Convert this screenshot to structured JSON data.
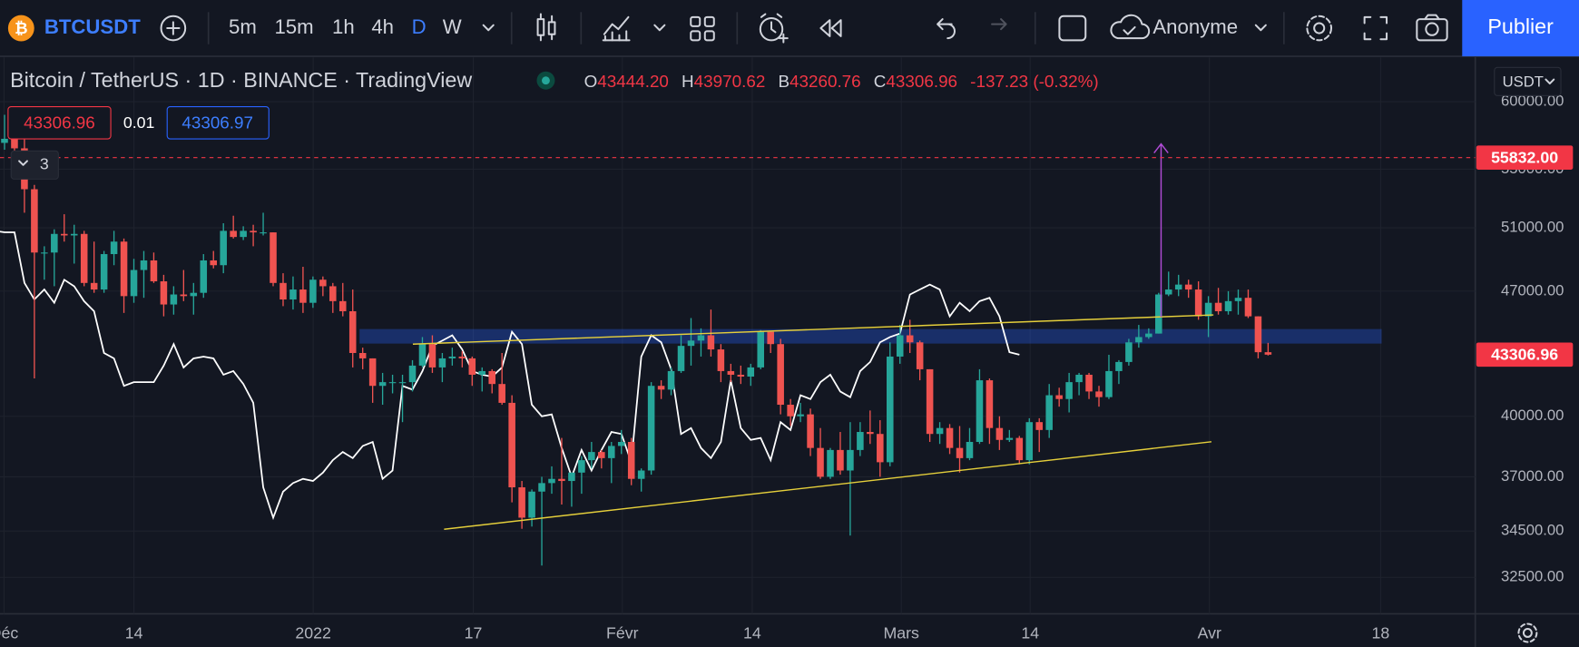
{
  "toolbar": {
    "logo": "₿",
    "symbol": "BTCUSDT",
    "intervals": [
      "5m",
      "15m",
      "1h",
      "4h",
      "D",
      "W"
    ],
    "account": "Anonyme",
    "publish": "Publier"
  },
  "legend": {
    "title": "Bitcoin / TetherUS · 1D · BINANCE · TradingView",
    "ohlc": [
      {
        "label": "O",
        "value": "43444.20"
      },
      {
        "label": "H",
        "value": "43970.62"
      },
      {
        "label": "B",
        "value": "43260.76"
      },
      {
        "label": "C",
        "value": "43306.96"
      }
    ],
    "change": "-137.23 (-0.32%)",
    "sell": "43306.96",
    "spread": "0.01",
    "buy": "43306.97",
    "indicators_count": "3"
  },
  "chart_data": {
    "type": "candlestick",
    "currency": "USDT",
    "log": true,
    "grid": true,
    "up_color": "#26a69a",
    "down_color": "#ef5350",
    "lagging_color": "#ffffff",
    "ylim": [
      31010,
      63530
    ],
    "yticks": [
      {
        "value": 60000,
        "label": "60000.00"
      },
      {
        "value": 55000,
        "label": "55000.00"
      },
      {
        "value": 51000,
        "label": "51000.00"
      },
      {
        "value": 47000,
        "label": "47000.00"
      },
      {
        "value": 40000,
        "label": "40000.00"
      },
      {
        "value": 37000,
        "label": "37000.00"
      },
      {
        "value": 34500,
        "label": "34500.00"
      },
      {
        "value": 32500,
        "label": "32500.00"
      }
    ],
    "x_labels": [
      "Déc",
      "14",
      "2022",
      "17",
      "Févr",
      "14",
      "Mars",
      "14",
      "Avr",
      "18"
    ],
    "zone": [
      43930,
      44760
    ],
    "price_tags": [
      {
        "value": 55832,
        "label": "55832.00",
        "color": "#f23645"
      },
      {
        "value": 43306.96,
        "color": "#f23645"
      }
    ],
    "open": [
      56900,
      57200,
      56500,
      53600,
      49400,
      49400,
      50600,
      50500,
      50600,
      47500,
      47100,
      49300,
      50100,
      46700,
      48300,
      48900,
      47600,
      46200,
      46800,
      46700,
      46900,
      48900,
      48600,
      50800,
      50400,
      50800,
      50700,
      50700,
      47500,
      46500,
      47100,
      46300,
      47700,
      47300,
      46400,
      45800,
      43400,
      43100,
      41600,
      41800,
      41800,
      41800,
      42700,
      43900,
      42600,
      43100,
      43200,
      43100,
      42200,
      42400,
      41700,
      40700,
      36500,
      35100,
      36300,
      36700,
      36900,
      36800,
      37200,
      37800,
      38200,
      37900,
      38500,
      38700,
      36900,
      37300,
      41600,
      41400,
      42400,
      43800,
      44100,
      44400,
      43600,
      42400,
      42200,
      42100,
      42600,
      44600,
      43900,
      40600,
      40000,
      40100,
      38400,
      37000,
      38300,
      37300,
      38300,
      39200,
      39100,
      37700,
      43200,
      44400,
      44000,
      42500,
      39100,
      39400,
      38400,
      37900,
      38700,
      41900,
      39400,
      38800,
      38900,
      37800,
      39700,
      39300,
      41100,
      40900,
      41800,
      42200,
      41300,
      41000,
      42400,
      42900,
      44000,
      44300,
      44500,
      46800,
      47100,
      47400,
      47100,
      45500,
      46300,
      45800,
      46400,
      46600,
      45500,
      43444.2
    ],
    "high": [
      59000,
      57400,
      57600,
      53900,
      49800,
      50900,
      51900,
      51200,
      50800,
      50100,
      49500,
      50800,
      50300,
      49000,
      49500,
      49400,
      48000,
      47300,
      48300,
      47500,
      49300,
      49500,
      51300,
      51800,
      51100,
      51200,
      52000,
      50700,
      48100,
      47900,
      48500,
      47900,
      47900,
      47500,
      47500,
      47100,
      43700,
      43100,
      42300,
      42200,
      42200,
      43000,
      44300,
      44400,
      43400,
      43700,
      43500,
      43200,
      42600,
      42500,
      43400,
      41100,
      36800,
      36400,
      37000,
      37500,
      38900,
      37200,
      38000,
      38700,
      38300,
      38700,
      39300,
      38900,
      37400,
      41800,
      41900,
      42600,
      44400,
      45400,
      44800,
      45900,
      43900,
      42800,
      42700,
      42800,
      44700,
      44600,
      44200,
      40900,
      40700,
      40400,
      39400,
      38400,
      39200,
      39700,
      39700,
      40300,
      39800,
      44000,
      45000,
      45300,
      44100,
      42500,
      39700,
      39600,
      39500,
      39400,
      42500,
      42000,
      40000,
      39300,
      39000,
      39900,
      39900,
      41700,
      41500,
      42300,
      42300,
      42300,
      41600,
      43300,
      43000,
      44200,
      45000,
      44800,
      46900,
      48200,
      48000,
      47700,
      47600,
      46700,
      47200,
      47000,
      47100,
      47100,
      45500,
      43970.62
    ],
    "low": [
      56400,
      55900,
      52000,
      42000,
      47700,
      47300,
      50100,
      48700,
      47300,
      46900,
      46900,
      48600,
      45700,
      46300,
      46600,
      47500,
      45500,
      45600,
      46400,
      45600,
      46600,
      48400,
      48100,
      50300,
      50200,
      49800,
      50500,
      47300,
      46100,
      45900,
      45700,
      46000,
      46700,
      45700,
      45500,
      42600,
      42500,
      40700,
      40600,
      41200,
      39700,
      41300,
      42600,
      42300,
      41800,
      42700,
      42600,
      41600,
      41300,
      41200,
      40600,
      35800,
      34600,
      34700,
      33000,
      36200,
      35700,
      35600,
      36200,
      37400,
      37400,
      36700,
      38100,
      36600,
      36300,
      37100,
      40900,
      41100,
      42300,
      42700,
      43200,
      43200,
      41800,
      41800,
      41700,
      41600,
      42500,
      43400,
      40100,
      39500,
      39700,
      38000,
      36900,
      36900,
      37100,
      34300,
      38000,
      38600,
      37000,
      37500,
      42800,
      43400,
      41900,
      38700,
      38600,
      38100,
      37200,
      37800,
      38600,
      38600,
      38300,
      38700,
      37600,
      37600,
      38200,
      38900,
      40500,
      40200,
      41100,
      40900,
      40500,
      40900,
      41700,
      42700,
      43700,
      44200,
      44500,
      46700,
      46700,
      46600,
      45300,
      44300,
      45600,
      45600,
      45600,
      45400,
      43100,
      43260.76
    ],
    "close": [
      57200,
      56500,
      53600,
      49400,
      49400,
      50600,
      50500,
      50600,
      47500,
      47100,
      49300,
      50100,
      46700,
      48300,
      48900,
      47600,
      46200,
      46800,
      46700,
      46900,
      48900,
      48600,
      50800,
      50400,
      50800,
      50700,
      50700,
      47500,
      46500,
      47100,
      46300,
      47700,
      47300,
      46400,
      45800,
      43400,
      43100,
      41600,
      41800,
      41800,
      41800,
      42700,
      43900,
      42600,
      43100,
      43200,
      43100,
      42200,
      42400,
      41700,
      40700,
      36500,
      35100,
      36300,
      36700,
      36900,
      36800,
      37200,
      37800,
      38200,
      37900,
      38500,
      38700,
      36900,
      37300,
      41600,
      41400,
      42400,
      43800,
      44100,
      44400,
      43600,
      42400,
      42200,
      42100,
      42600,
      44600,
      43900,
      40600,
      40000,
      40100,
      38400,
      37000,
      38300,
      37300,
      38300,
      39200,
      39100,
      37700,
      43200,
      44400,
      44000,
      42500,
      39100,
      39400,
      38400,
      37900,
      38700,
      41900,
      39400,
      38800,
      38900,
      37800,
      39700,
      39300,
      41100,
      40900,
      41800,
      42200,
      41300,
      41000,
      42400,
      42900,
      44000,
      44300,
      44500,
      46800,
      47100,
      47400,
      47100,
      45500,
      46300,
      45800,
      46400,
      46600,
      45500,
      43444.2,
      43306.96
    ]
  }
}
